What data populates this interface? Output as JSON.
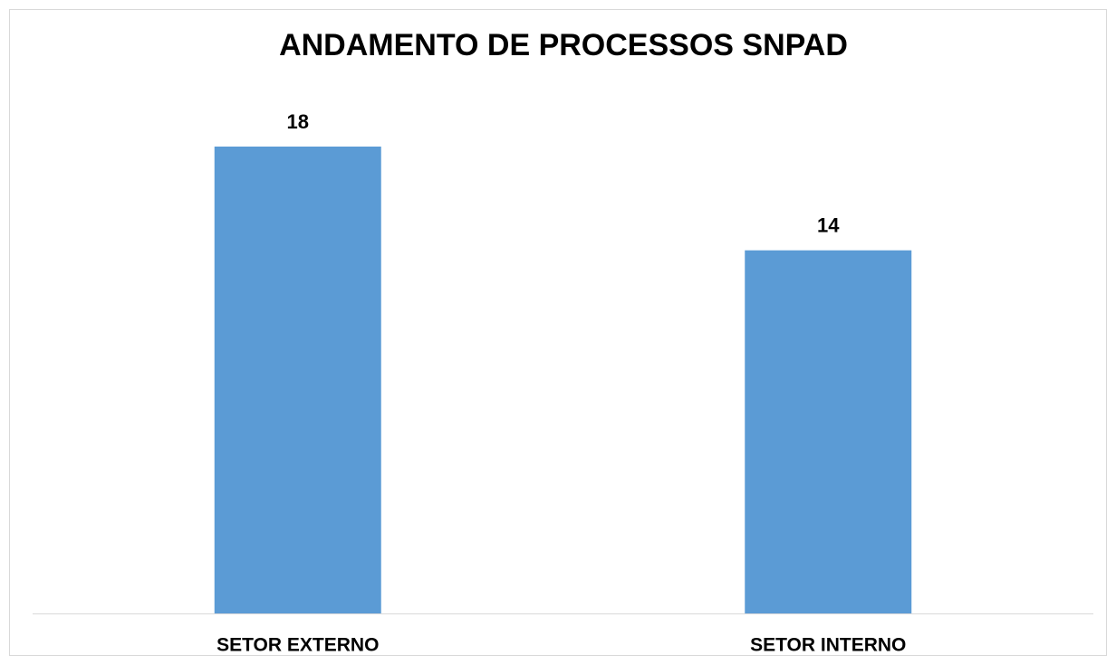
{
  "chart_data": {
    "type": "bar",
    "title": "ANDAMENTO DE PROCESSOS SNPAD",
    "categories": [
      "SETOR EXTERNO",
      "SETOR INTERNO"
    ],
    "values": [
      18,
      14
    ],
    "color": "#5b9bd5"
  }
}
